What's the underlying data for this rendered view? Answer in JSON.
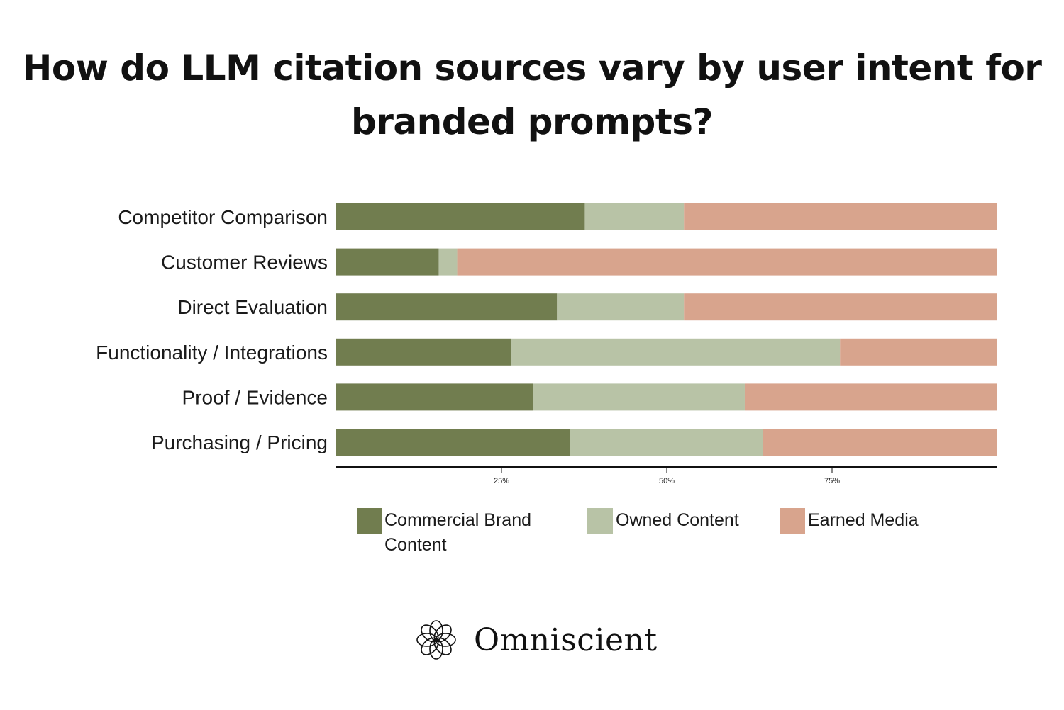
{
  "title": "How do LLM citation sources vary by user intent for branded prompts?",
  "colors": {
    "commercial": "#717d4f",
    "owned": "#b8c3a6",
    "earned": "#d8a48d",
    "axis": "#111111"
  },
  "chart_data": {
    "type": "bar",
    "orientation": "horizontal",
    "stacked": true,
    "categories": [
      "Competitor Comparison",
      "Customer Reviews",
      "Direct Evaluation",
      "Functionality / Integrations",
      "Proof / Evidence",
      "Purchasing / Pricing"
    ],
    "series": [
      {
        "name": "Commercial Brand Content",
        "values": [
          37.6,
          15.5,
          33.4,
          26.4,
          29.8,
          35.4
        ]
      },
      {
        "name": "Owned Content",
        "values": [
          15.0,
          2.8,
          19.2,
          49.8,
          32.0,
          29.1
        ]
      },
      {
        "name": "Earned Media",
        "values": [
          47.4,
          81.7,
          47.4,
          23.8,
          38.2,
          35.5
        ]
      }
    ],
    "xlim": [
      0,
      100
    ],
    "x_ticks": [
      25,
      50,
      75
    ],
    "x_tick_labels": [
      "25%",
      "50%",
      "75%"
    ],
    "grid": false,
    "legend_position": "bottom"
  },
  "legend": {
    "commercial_line1": "Commercial Brand",
    "commercial_line2": "Content",
    "owned": "Owned Content",
    "earned": "Earned Media"
  },
  "brand": {
    "name": "Omniscient",
    "icon": "knot-logo-icon"
  }
}
